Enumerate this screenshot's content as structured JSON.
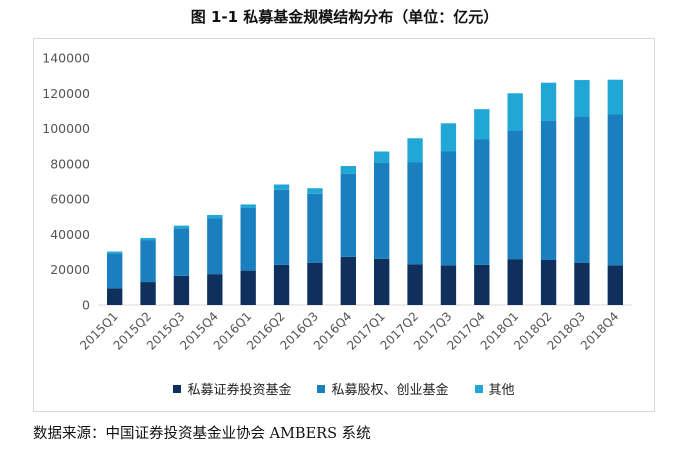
{
  "title": "图 1-1  私募基金规模结构分布（单位：亿元）",
  "source": "数据来源：中国证券投资基金业协会 AMBERS 系统",
  "colors": {
    "securities": "#0f2f5c",
    "equity": "#1a7fbf",
    "other": "#21a7d6",
    "axis_text": "#555555",
    "grid": "#d9d9d9"
  },
  "chart_data": {
    "type": "bar",
    "stacked": true,
    "categories": [
      "2015Q1",
      "2015Q2",
      "2015Q3",
      "2015Q4",
      "2016Q1",
      "2016Q2",
      "2016Q3",
      "2016Q4",
      "2017Q1",
      "2017Q2",
      "2017Q3",
      "2017Q4",
      "2018Q1",
      "2018Q2",
      "2018Q3",
      "2018Q4"
    ],
    "series": [
      {
        "name": "私募证券投资基金",
        "color": "#0f2f5c",
        "values": [
          9500,
          13000,
          16500,
          17500,
          19500,
          22800,
          24000,
          27300,
          26200,
          23000,
          22500,
          22800,
          26000,
          25500,
          24000,
          22500
        ]
      },
      {
        "name": "私募股权、创业基金",
        "color": "#1a7fbf",
        "values": [
          19800,
          23800,
          27000,
          31500,
          35500,
          42500,
          39000,
          47000,
          54300,
          58000,
          64500,
          71000,
          73000,
          79000,
          83000,
          85500
        ]
      },
      {
        "name": "其他",
        "color": "#21a7d6",
        "values": [
          1000,
          1200,
          1500,
          2000,
          2000,
          3000,
          3200,
          4500,
          6500,
          13500,
          16000,
          17200,
          21000,
          21500,
          20500,
          19700
        ]
      }
    ],
    "ylim": [
      0,
      140000
    ],
    "yticks": [
      0,
      20000,
      40000,
      60000,
      80000,
      100000,
      120000,
      140000
    ],
    "ytick_labels": [
      "0",
      "20000",
      "40000",
      "60000",
      "80000",
      "100000",
      "120000",
      "140000"
    ],
    "legend_position": "bottom",
    "grid": false
  }
}
